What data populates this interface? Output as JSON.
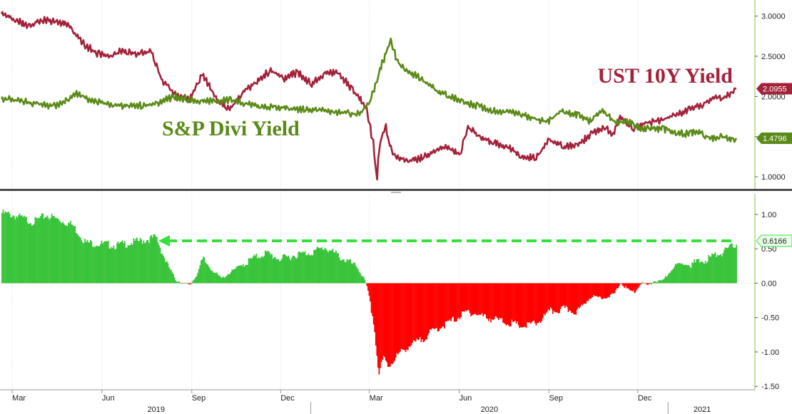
{
  "chart_data": [
    {
      "type": "line",
      "title": "",
      "ylim": [
        0.85,
        3.2
      ],
      "yticks": [
        "3.0000",
        "2.5000",
        "2.0000",
        "1.5000",
        "1.0000"
      ],
      "ytick_values": [
        3.0,
        2.5,
        2.0,
        1.5,
        1.0
      ],
      "x_range": [
        "2019-02-18",
        "2021-03-12"
      ],
      "series": [
        {
          "name": "UST 10Y Yield",
          "color": "#a3223a",
          "last_value": "2.0955",
          "last": 2.0955,
          "points": [
            [
              "2019-02-18",
              3.05
            ],
            [
              "2019-03-04",
              2.98
            ],
            [
              "2019-03-18",
              2.9
            ],
            [
              "2019-04-01",
              2.98
            ],
            [
              "2019-04-15",
              2.95
            ],
            [
              "2019-04-29",
              2.9
            ],
            [
              "2019-05-13",
              2.68
            ],
            [
              "2019-05-27",
              2.56
            ],
            [
              "2019-06-10",
              2.52
            ],
            [
              "2019-06-24",
              2.6
            ],
            [
              "2019-07-08",
              2.55
            ],
            [
              "2019-07-22",
              2.58
            ],
            [
              "2019-08-01",
              2.25
            ],
            [
              "2019-08-15",
              2.05
            ],
            [
              "2019-08-30",
              1.98
            ],
            [
              "2019-09-12",
              2.3
            ],
            [
              "2019-09-26",
              2.0
            ],
            [
              "2019-10-10",
              1.85
            ],
            [
              "2019-10-24",
              2.08
            ],
            [
              "2019-11-07",
              2.2
            ],
            [
              "2019-11-21",
              2.35
            ],
            [
              "2019-12-05",
              2.25
            ],
            [
              "2019-12-19",
              2.32
            ],
            [
              "2020-01-02",
              2.18
            ],
            [
              "2020-01-16",
              2.3
            ],
            [
              "2020-01-30",
              2.32
            ],
            [
              "2020-02-13",
              2.1
            ],
            [
              "2020-02-27",
              1.9
            ],
            [
              "2020-03-05",
              1.45
            ],
            [
              "2020-03-09",
              1.0
            ],
            [
              "2020-03-12",
              1.45
            ],
            [
              "2020-03-18",
              1.65
            ],
            [
              "2020-03-25",
              1.3
            ],
            [
              "2020-04-08",
              1.22
            ],
            [
              "2020-04-22",
              1.25
            ],
            [
              "2020-05-06",
              1.32
            ],
            [
              "2020-05-20",
              1.4
            ],
            [
              "2020-06-03",
              1.3
            ],
            [
              "2020-06-10",
              1.65
            ],
            [
              "2020-06-24",
              1.5
            ],
            [
              "2020-07-08",
              1.45
            ],
            [
              "2020-07-22",
              1.38
            ],
            [
              "2020-08-05",
              1.28
            ],
            [
              "2020-08-19",
              1.25
            ],
            [
              "2020-09-02",
              1.48
            ],
            [
              "2020-09-16",
              1.4
            ],
            [
              "2020-09-30",
              1.42
            ],
            [
              "2020-10-14",
              1.55
            ],
            [
              "2020-10-28",
              1.65
            ],
            [
              "2020-11-06",
              1.55
            ],
            [
              "2020-11-13",
              1.75
            ],
            [
              "2020-11-27",
              1.62
            ],
            [
              "2020-12-11",
              1.7
            ],
            [
              "2020-12-25",
              1.72
            ],
            [
              "2021-01-08",
              1.8
            ],
            [
              "2021-01-22",
              1.85
            ],
            [
              "2021-02-05",
              1.92
            ],
            [
              "2021-02-19",
              2.02
            ],
            [
              "2021-02-26",
              2.0
            ],
            [
              "2021-03-05",
              2.05
            ],
            [
              "2021-03-12",
              2.0955
            ]
          ]
        },
        {
          "name": "S&P Divi Yield",
          "color": "#5a8a17",
          "last_value": "1.4796",
          "last": 1.4796,
          "points": [
            [
              "2019-02-18",
              2.0
            ],
            [
              "2019-03-18",
              1.95
            ],
            [
              "2019-04-15",
              1.9
            ],
            [
              "2019-05-06",
              2.05
            ],
            [
              "2019-05-27",
              1.95
            ],
            [
              "2019-06-24",
              1.9
            ],
            [
              "2019-07-22",
              1.92
            ],
            [
              "2019-08-15",
              2.02
            ],
            [
              "2019-09-12",
              1.95
            ],
            [
              "2019-10-10",
              1.98
            ],
            [
              "2019-11-07",
              1.9
            ],
            [
              "2019-12-05",
              1.88
            ],
            [
              "2020-01-02",
              1.85
            ],
            [
              "2020-01-30",
              1.83
            ],
            [
              "2020-02-20",
              1.8
            ],
            [
              "2020-03-02",
              1.95
            ],
            [
              "2020-03-12",
              2.35
            ],
            [
              "2020-03-23",
              2.72
            ],
            [
              "2020-03-30",
              2.45
            ],
            [
              "2020-04-13",
              2.32
            ],
            [
              "2020-04-27",
              2.2
            ],
            [
              "2020-05-11",
              2.08
            ],
            [
              "2020-06-08",
              1.95
            ],
            [
              "2020-07-06",
              1.85
            ],
            [
              "2020-08-03",
              1.8
            ],
            [
              "2020-08-31",
              1.7
            ],
            [
              "2020-09-14",
              1.85
            ],
            [
              "2020-09-28",
              1.8
            ],
            [
              "2020-10-12",
              1.72
            ],
            [
              "2020-10-26",
              1.85
            ],
            [
              "2020-11-09",
              1.7
            ],
            [
              "2020-11-23",
              1.7
            ],
            [
              "2020-12-07",
              1.62
            ],
            [
              "2020-12-21",
              1.62
            ],
            [
              "2021-01-04",
              1.6
            ],
            [
              "2021-01-18",
              1.55
            ],
            [
              "2021-02-01",
              1.58
            ],
            [
              "2021-02-15",
              1.5
            ],
            [
              "2021-03-01",
              1.52
            ],
            [
              "2021-03-12",
              1.4796
            ]
          ]
        }
      ]
    },
    {
      "type": "bar",
      "title": "",
      "ylim": [
        -1.55,
        1.3
      ],
      "yticks": [
        "1.00",
        "0.50",
        "0.00",
        "-0.50",
        "-1.00",
        "-1.50"
      ],
      "ytick_values": [
        1.0,
        0.5,
        0.0,
        -0.5,
        -1.0,
        -1.5
      ],
      "x_range": [
        "2019-02-18",
        "2021-03-12"
      ],
      "positive_color": "#39c43a",
      "negative_color": "#ff0000",
      "last_value": "0.6166",
      "last": 0.6166,
      "reference_line": 0.6166,
      "profile": [
        [
          "2019-02-18",
          1.05
        ],
        [
          "2019-03-01",
          1.02
        ],
        [
          "2019-03-10",
          0.98
        ],
        [
          "2019-03-22",
          0.92
        ],
        [
          "2019-04-05",
          1.02
        ],
        [
          "2019-04-18",
          0.95
        ],
        [
          "2019-05-01",
          0.88
        ],
        [
          "2019-05-15",
          0.62
        ],
        [
          "2019-06-01",
          0.6
        ],
        [
          "2019-06-15",
          0.58
        ],
        [
          "2019-07-01",
          0.62
        ],
        [
          "2019-07-15",
          0.66
        ],
        [
          "2019-07-26",
          0.7
        ],
        [
          "2019-08-02",
          0.45
        ],
        [
          "2019-08-08",
          0.25
        ],
        [
          "2019-08-15",
          0.06
        ],
        [
          "2019-08-22",
          0.02
        ],
        [
          "2019-08-29",
          -0.02
        ],
        [
          "2019-09-05",
          0.12
        ],
        [
          "2019-09-12",
          0.38
        ],
        [
          "2019-09-20",
          0.22
        ],
        [
          "2019-10-01",
          0.08
        ],
        [
          "2019-10-15",
          0.22
        ],
        [
          "2019-11-01",
          0.38
        ],
        [
          "2019-11-15",
          0.47
        ],
        [
          "2019-12-01",
          0.38
        ],
        [
          "2019-12-15",
          0.44
        ],
        [
          "2020-01-01",
          0.48
        ],
        [
          "2020-01-15",
          0.55
        ],
        [
          "2020-02-01",
          0.4
        ],
        [
          "2020-02-15",
          0.28
        ],
        [
          "2020-02-24",
          0.08
        ],
        [
          "2020-02-28",
          -0.1
        ],
        [
          "2020-03-05",
          -0.55
        ],
        [
          "2020-03-10",
          -1.3
        ],
        [
          "2020-03-15",
          -1.05
        ],
        [
          "2020-03-20",
          -1.18
        ],
        [
          "2020-03-27",
          -1.05
        ],
        [
          "2020-04-08",
          -0.9
        ],
        [
          "2020-04-22",
          -0.8
        ],
        [
          "2020-05-06",
          -0.65
        ],
        [
          "2020-05-20",
          -0.55
        ],
        [
          "2020-06-10",
          -0.38
        ],
        [
          "2020-06-24",
          -0.45
        ],
        [
          "2020-07-08",
          -0.5
        ],
        [
          "2020-07-22",
          -0.55
        ],
        [
          "2020-08-05",
          -0.6
        ],
        [
          "2020-08-19",
          -0.55
        ],
        [
          "2020-09-02",
          -0.38
        ],
        [
          "2020-09-16",
          -0.35
        ],
        [
          "2020-09-30",
          -0.38
        ],
        [
          "2020-10-14",
          -0.18
        ],
        [
          "2020-10-28",
          -0.2
        ],
        [
          "2020-11-06",
          -0.15
        ],
        [
          "2020-11-13",
          0.02
        ],
        [
          "2020-11-20",
          -0.08
        ],
        [
          "2020-11-27",
          -0.12
        ],
        [
          "2020-12-04",
          0.02
        ],
        [
          "2020-12-11",
          -0.02
        ],
        [
          "2020-12-18",
          0.05
        ],
        [
          "2020-12-25",
          0.03
        ],
        [
          "2021-01-08",
          0.28
        ],
        [
          "2021-01-22",
          0.3
        ],
        [
          "2021-02-05",
          0.35
        ],
        [
          "2021-02-19",
          0.45
        ],
        [
          "2021-03-01",
          0.5
        ],
        [
          "2021-03-12",
          0.6166
        ]
      ]
    }
  ],
  "x_axis": {
    "month_ticks": [
      {
        "label": "Mar",
        "date": "2019-03-01"
      },
      {
        "label": "Jun",
        "date": "2019-06-01"
      },
      {
        "label": "Sep",
        "date": "2019-09-01"
      },
      {
        "label": "Dec",
        "date": "2019-12-01"
      },
      {
        "label": "Mar",
        "date": "2020-03-01"
      },
      {
        "label": "Jun",
        "date": "2020-06-01"
      },
      {
        "label": "Sep",
        "date": "2020-09-01"
      },
      {
        "label": "Dec",
        "date": "2020-12-01"
      }
    ],
    "years": [
      {
        "label": "2019",
        "from": "2019-02-18",
        "to": "2020-01-01"
      },
      {
        "label": "2020",
        "from": "2020-01-01",
        "to": "2021-01-01"
      },
      {
        "label": "2021",
        "from": "2021-01-01",
        "to": "2021-03-12"
      }
    ]
  },
  "labels": {
    "ust": "UST 10Y Yield",
    "divi": "S&P Divi Yield"
  }
}
